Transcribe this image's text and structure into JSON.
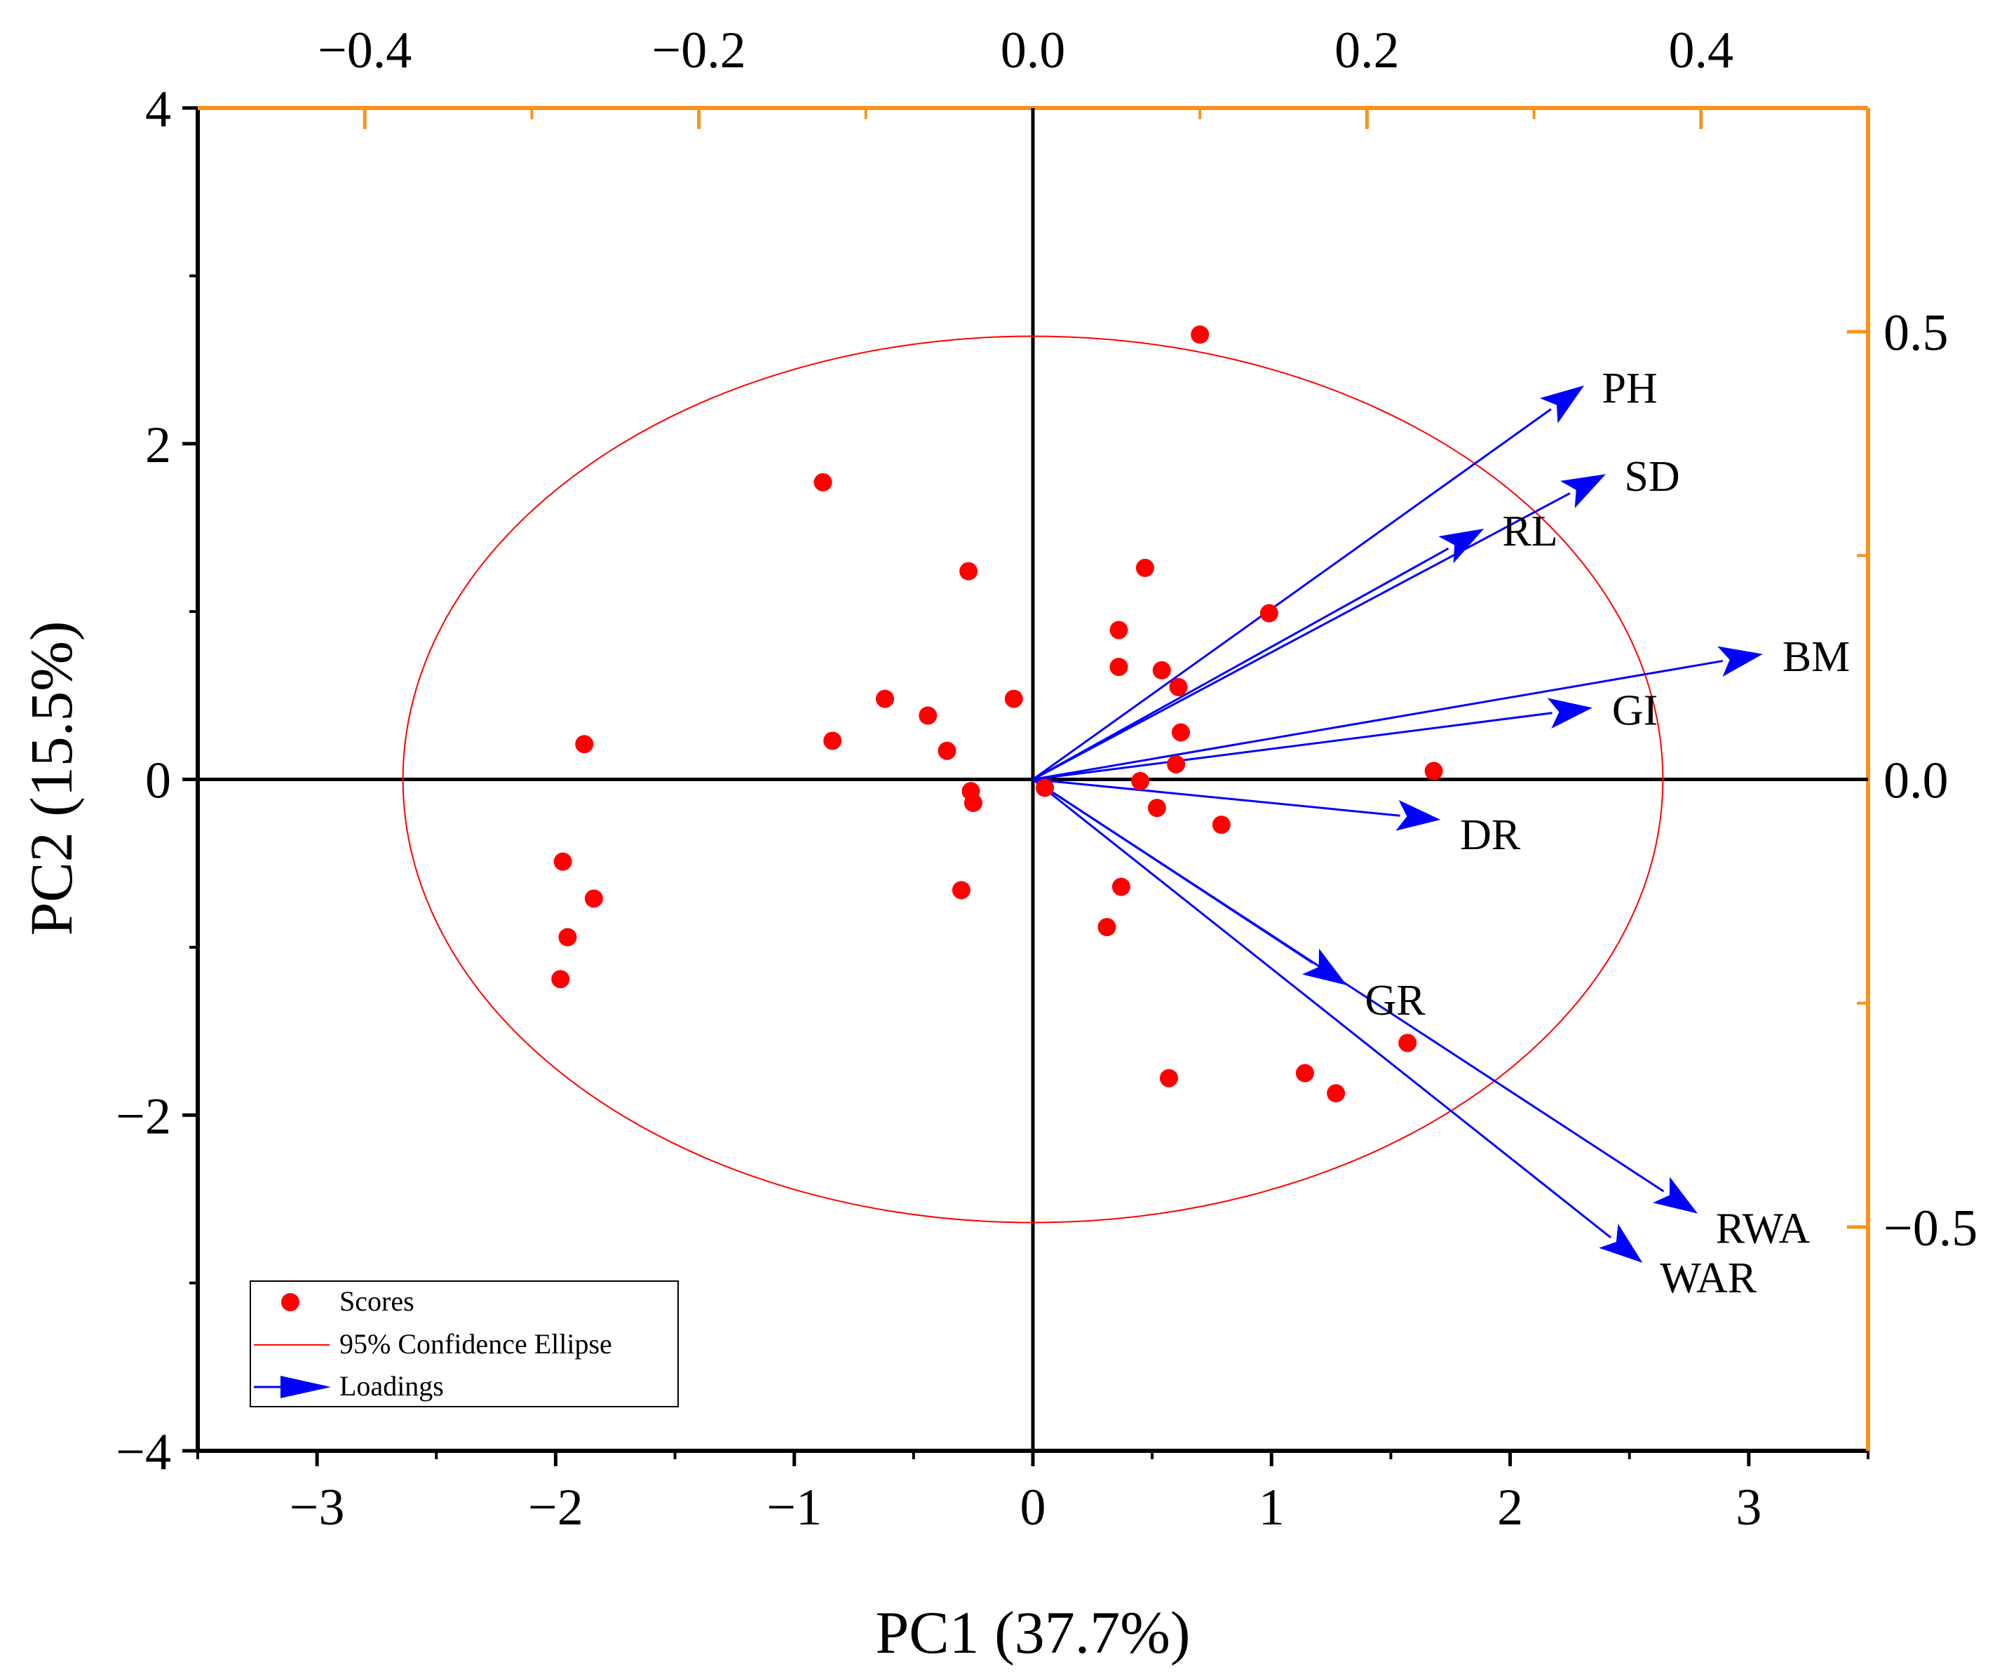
{
  "chart_data": {
    "type": "scatter",
    "subtype": "pca-biplot",
    "xlabel": "PC1 (37.7%)",
    "ylabel": "PC2 (15.5%)",
    "xlim": [
      -3.5,
      3.5
    ],
    "ylim": [
      -4,
      4
    ],
    "x_ticks": [
      -3,
      -2,
      -1,
      0,
      1,
      2,
      3
    ],
    "x_tick_labels": [
      "−3",
      "−2",
      "−1",
      "0",
      "1",
      "2",
      "3"
    ],
    "y_ticks": [
      -4,
      -2,
      0,
      2,
      4
    ],
    "y_tick_labels": [
      "−4",
      "−2",
      "0",
      "2",
      "4"
    ],
    "top_axis": {
      "lim": [
        -0.5,
        0.5
      ],
      "ticks": [
        -0.4,
        -0.2,
        0.0,
        0.2,
        0.4
      ],
      "tick_labels": [
        "−0.4",
        "−0.2",
        "0.0",
        "0.2",
        "0.4"
      ],
      "color": "#f7941d"
    },
    "right_axis": {
      "lim": [
        -0.75,
        0.75
      ],
      "ticks": [
        -0.5,
        0.0,
        0.5
      ],
      "tick_labels": [
        "−0.5",
        "0.0",
        "0.5"
      ],
      "color": "#f7941d"
    },
    "grid": false,
    "legend_position": "bottom-left",
    "legend": [
      {
        "label": "Scores",
        "marker": "circle",
        "color": "#ff0000"
      },
      {
        "label": "95% Confidence Ellipse",
        "marker": "line",
        "color": "#ff0000"
      },
      {
        "label": "Loadings",
        "marker": "arrow",
        "color": "#0000ff"
      }
    ],
    "scores": {
      "color": "#ff0000",
      "points": [
        {
          "x": 0.7,
          "y": 2.65
        },
        {
          "x": -0.88,
          "y": 1.77
        },
        {
          "x": -0.27,
          "y": 1.24
        },
        {
          "x": 0.47,
          "y": 1.26
        },
        {
          "x": 0.99,
          "y": 0.99
        },
        {
          "x": 0.36,
          "y": 0.89
        },
        {
          "x": 0.36,
          "y": 0.67
        },
        {
          "x": 0.54,
          "y": 0.65
        },
        {
          "x": 0.61,
          "y": 0.55
        },
        {
          "x": -0.62,
          "y": 0.48
        },
        {
          "x": -0.08,
          "y": 0.48
        },
        {
          "x": -0.44,
          "y": 0.38
        },
        {
          "x": 0.62,
          "y": 0.28
        },
        {
          "x": -0.84,
          "y": 0.23
        },
        {
          "x": -1.88,
          "y": 0.21
        },
        {
          "x": -0.36,
          "y": 0.17
        },
        {
          "x": 0.6,
          "y": 0.09
        },
        {
          "x": 1.68,
          "y": 0.05
        },
        {
          "x": 0.45,
          "y": -0.01
        },
        {
          "x": 0.05,
          "y": -0.05
        },
        {
          "x": -0.26,
          "y": -0.07
        },
        {
          "x": -0.25,
          "y": -0.14
        },
        {
          "x": 0.52,
          "y": -0.17
        },
        {
          "x": 0.79,
          "y": -0.27
        },
        {
          "x": -1.97,
          "y": -0.49
        },
        {
          "x": -0.3,
          "y": -0.66
        },
        {
          "x": 0.37,
          "y": -0.64
        },
        {
          "x": -1.84,
          "y": -0.71
        },
        {
          "x": 0.31,
          "y": -0.88
        },
        {
          "x": -1.95,
          "y": -0.94
        },
        {
          "x": -1.98,
          "y": -1.19
        },
        {
          "x": 1.57,
          "y": -1.57
        },
        {
          "x": 1.14,
          "y": -1.75
        },
        {
          "x": 0.57,
          "y": -1.78
        },
        {
          "x": 1.27,
          "y": -1.87
        }
      ]
    },
    "confidence_ellipse": {
      "center": [
        0,
        0
      ],
      "semi_axis_x": 2.64,
      "semi_axis_y": 2.64,
      "color": "#ff0000"
    },
    "loadings": {
      "color": "#0000ff",
      "scale_note": "read on top (x) and right (y) axes",
      "vectors": [
        {
          "label": "PH",
          "x": 0.33,
          "y": 0.44
        },
        {
          "label": "SD",
          "x": 0.343,
          "y": 0.341
        },
        {
          "label": "RL",
          "x": 0.27,
          "y": 0.28
        },
        {
          "label": "BM",
          "x": 0.437,
          "y": 0.14
        },
        {
          "label": "GI",
          "x": 0.335,
          "y": 0.08
        },
        {
          "label": "DR",
          "x": 0.244,
          "y": -0.045
        },
        {
          "label": "GR",
          "x": 0.188,
          "y": -0.23
        },
        {
          "label": "RWA",
          "x": 0.398,
          "y": -0.485
        },
        {
          "label": "WAR",
          "x": 0.365,
          "y": -0.54
        }
      ]
    }
  }
}
